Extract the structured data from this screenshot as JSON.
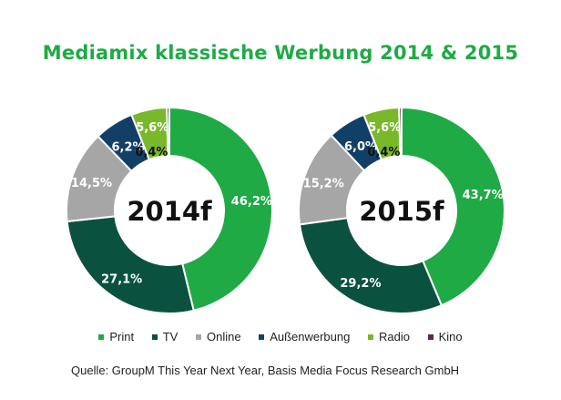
{
  "title": "Mediamix klassische Werbung 2014 & 2015",
  "source": "Quelle: GroupM This Year Next Year, Basis Media Focus Research GmbH",
  "colors": {
    "Print": "#1faa45",
    "TV": "#0b5140",
    "Online": "#a6a6a6",
    "Außenwerbung": "#123f66",
    "Radio": "#79b82a",
    "Kino": "#5a2a4a",
    "title": "#1faa45"
  },
  "chart_data": [
    {
      "type": "pie",
      "center_label": "2014f",
      "categories": [
        "Print",
        "TV",
        "Online",
        "Außenwerbung",
        "Radio",
        "Kino"
      ],
      "values": [
        46.2,
        27.1,
        14.5,
        6.2,
        5.6,
        0.4
      ],
      "labels": [
        "46,2%",
        "27,1%",
        "14,5%",
        "6,2%",
        "5,6%",
        "0,4%"
      ]
    },
    {
      "type": "pie",
      "center_label": "2015f",
      "categories": [
        "Print",
        "TV",
        "Online",
        "Außenwerbung",
        "Radio",
        "Kino"
      ],
      "values": [
        43.7,
        29.2,
        15.2,
        6.0,
        5.6,
        0.4
      ],
      "labels": [
        "43,7%",
        "29,2%",
        "15,2%",
        "6,0%",
        "5,6%",
        "0,4%"
      ]
    }
  ],
  "legend": [
    "Print",
    "TV",
    "Online",
    "Außenwerbung",
    "Radio",
    "Kino"
  ]
}
